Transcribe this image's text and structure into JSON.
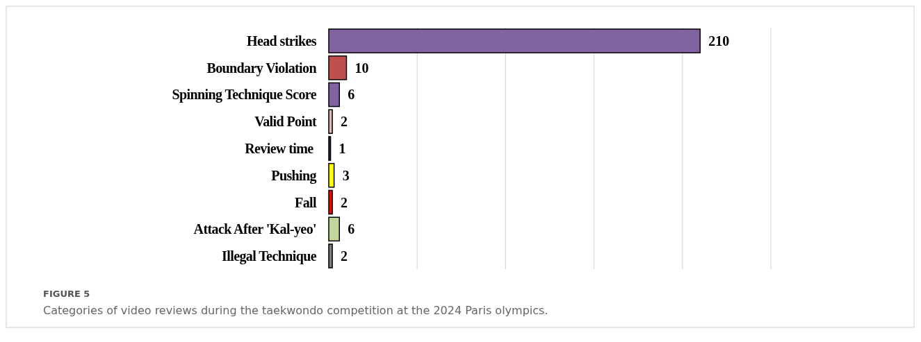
{
  "chart_data": {
    "type": "bar",
    "orientation": "horizontal",
    "categories": [
      "Head strikes",
      "Boundary Violation",
      "Spinning Technique Score",
      "Valid Point",
      "Review time ",
      "Pushing",
      "Fall",
      "Attack After 'Kal-yeo'",
      "Illegal Technique"
    ],
    "values": [
      210,
      10,
      6,
      2,
      1,
      3,
      2,
      6,
      2
    ],
    "colors": [
      "#8064a2",
      "#c0504d",
      "#8064a2",
      "#e6b9b8",
      "#1f3864",
      "#ffff00",
      "#ff0000",
      "#c3d69b",
      "#7f7f7f"
    ],
    "xlim": [
      0,
      250
    ],
    "xticks": [
      {
        "value": 0,
        "label": null
      },
      {
        "value": 50,
        "label": null
      },
      {
        "value": 100,
        "label": null
      },
      {
        "value": 150,
        "label": null
      },
      {
        "value": 200,
        "label": null
      },
      {
        "value": 250,
        "label": null
      }
    ],
    "grid": "x",
    "tick_labels": "y",
    "data_labels": true,
    "annotations": [
      "FIGURE 5",
      "Categories of video reviews during the taekwondo competition at the 2024 Paris olympics."
    ]
  }
}
